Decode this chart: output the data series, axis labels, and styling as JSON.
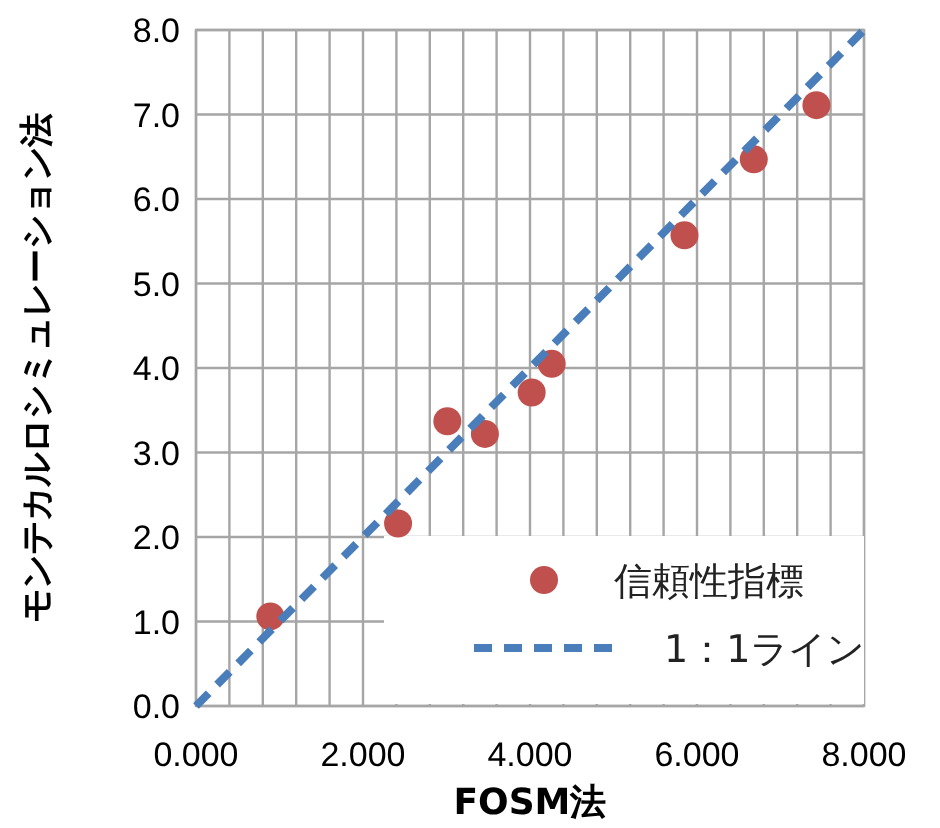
{
  "chart_data": {
    "type": "scatter",
    "xlabel": "FOSM法",
    "ylabel": "モンテカルロシミュレーション法",
    "xlim": [
      0,
      8
    ],
    "ylim": [
      0,
      8
    ],
    "xticks": [
      {
        "value": 0,
        "label": "0.000"
      },
      {
        "value": 0.4,
        "label": null
      },
      {
        "value": 0.8,
        "label": null
      },
      {
        "value": 1.2,
        "label": null
      },
      {
        "value": 1.6,
        "label": null
      },
      {
        "value": 2,
        "label": "2.000"
      },
      {
        "value": 2.4,
        "label": null
      },
      {
        "value": 2.8,
        "label": null
      },
      {
        "value": 3.2,
        "label": null
      },
      {
        "value": 3.6,
        "label": null
      },
      {
        "value": 4,
        "label": "4.000"
      },
      {
        "value": 4.4,
        "label": null
      },
      {
        "value": 4.8,
        "label": null
      },
      {
        "value": 5.2,
        "label": null
      },
      {
        "value": 5.6,
        "label": null
      },
      {
        "value": 6,
        "label": "6.000"
      },
      {
        "value": 6.4,
        "label": null
      },
      {
        "value": 6.8,
        "label": null
      },
      {
        "value": 7.2,
        "label": null
      },
      {
        "value": 7.6,
        "label": null
      },
      {
        "value": 8,
        "label": "8.000"
      }
    ],
    "yticks": [
      {
        "value": 0,
        "label": "0.0"
      },
      {
        "value": 1,
        "label": "1.0"
      },
      {
        "value": 2,
        "label": "2.0"
      },
      {
        "value": 3,
        "label": "3.0"
      },
      {
        "value": 4,
        "label": "4.0"
      },
      {
        "value": 5,
        "label": "5.0"
      },
      {
        "value": 6,
        "label": "6.0"
      },
      {
        "value": 7,
        "label": "7.0"
      },
      {
        "value": 8,
        "label": "8.0"
      }
    ],
    "grid": true,
    "legend": "bottom right",
    "series": [
      {
        "name": "信頼性指標",
        "marker": "circle",
        "color": "#c0504d",
        "x": [
          0.89,
          2.42,
          3.01,
          3.46,
          4.02,
          4.26,
          5.85,
          6.68,
          7.43
        ],
        "values": [
          1.06,
          2.16,
          3.37,
          3.22,
          3.71,
          4.05,
          5.57,
          6.47,
          7.11
        ]
      },
      {
        "name": "1：1ライン",
        "type": "line",
        "line_style": "dashed",
        "marker": "none",
        "color": "#4a7ebb",
        "x": [
          0,
          8
        ],
        "values": [
          0,
          8
        ]
      }
    ]
  }
}
